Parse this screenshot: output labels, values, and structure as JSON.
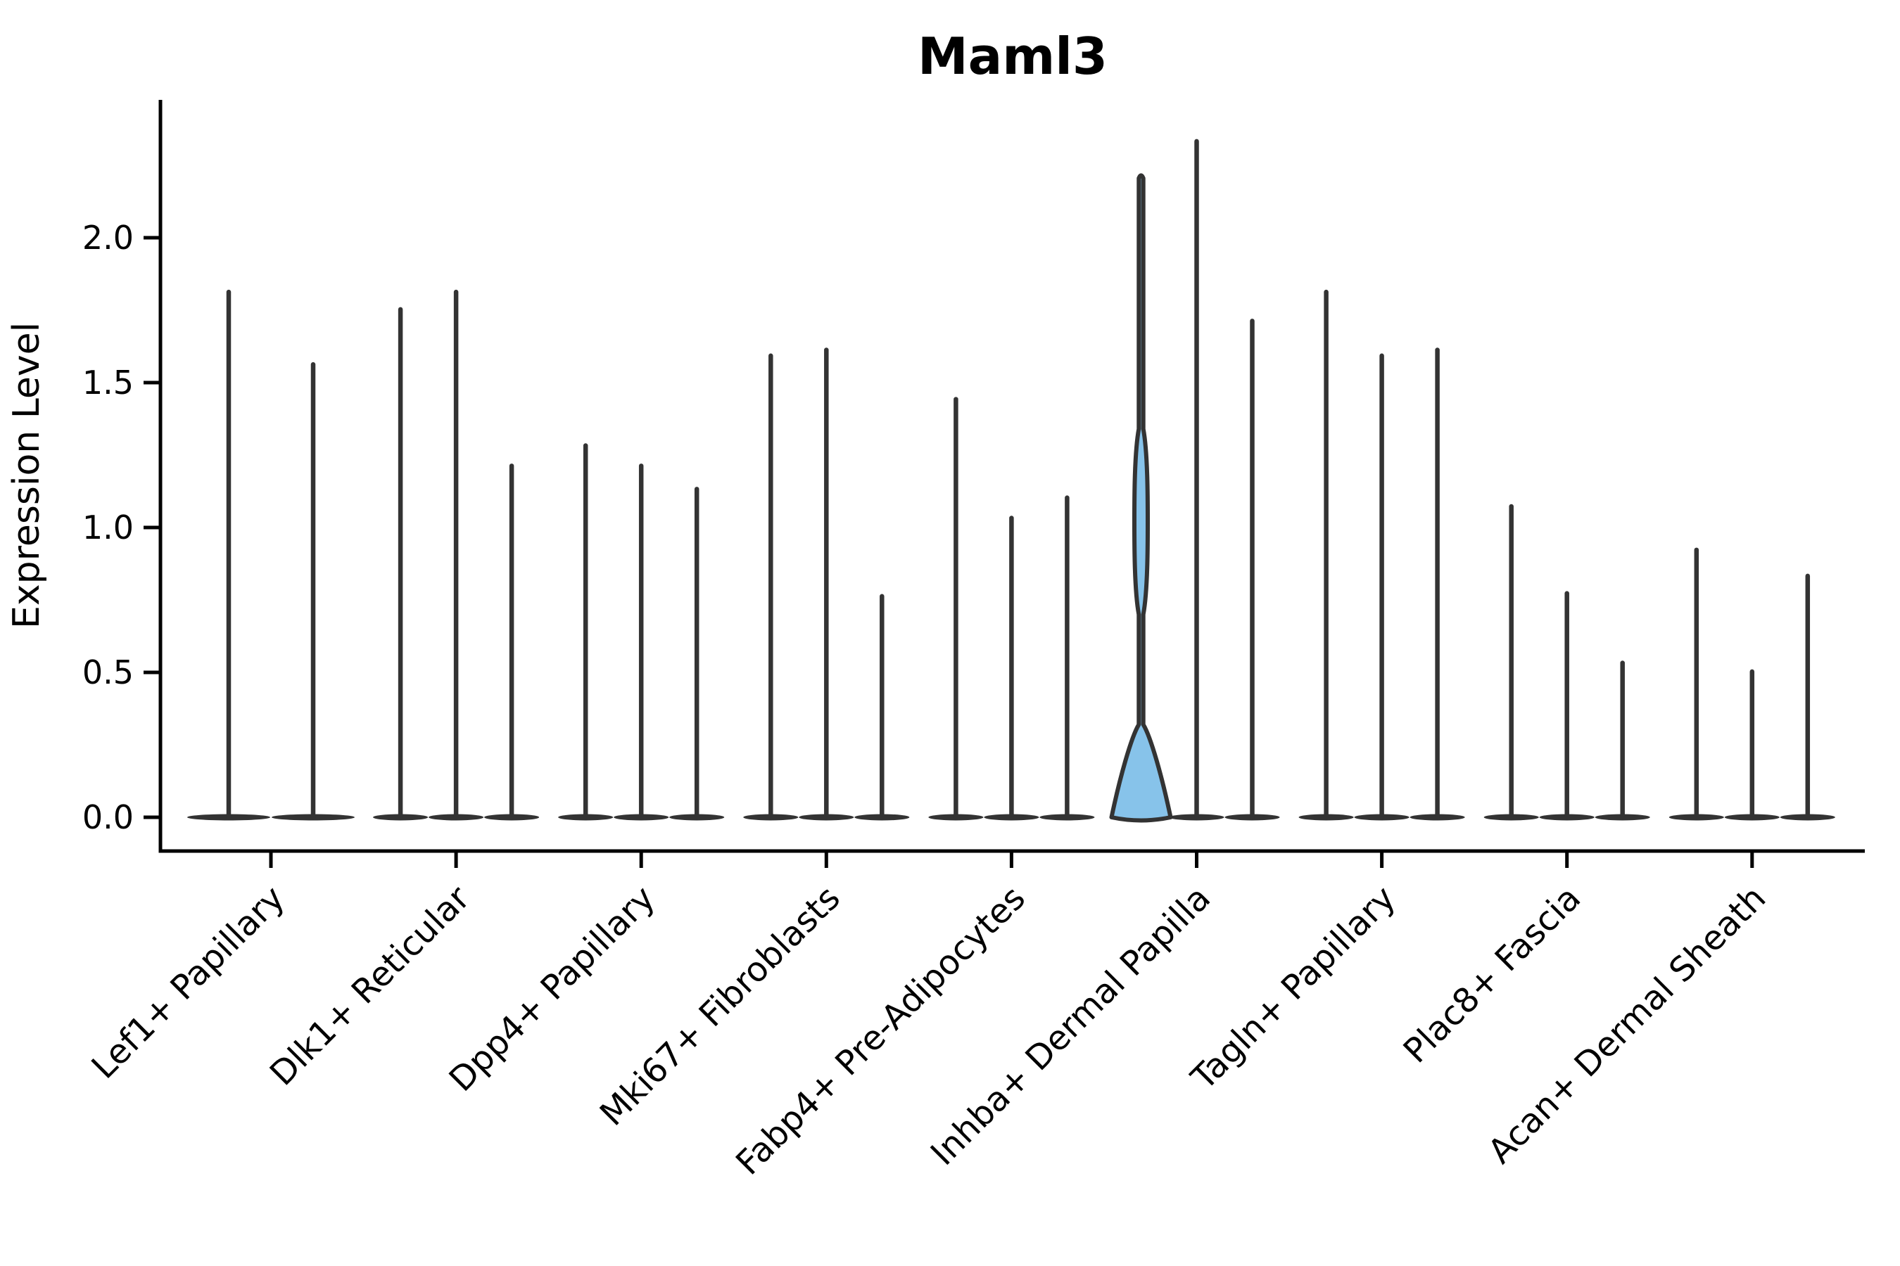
{
  "chart_data": {
    "type": "violin",
    "title": "Maml3",
    "ylabel": "Expression Level",
    "xlabel": "",
    "ylim": [
      -0.07,
      2.48
    ],
    "grid": false,
    "yticks": [
      "0.0",
      "0.5",
      "1.0",
      "1.5",
      "2.0"
    ],
    "ytick_values": [
      0.0,
      0.5,
      1.0,
      1.5,
      2.0
    ],
    "categories": [
      "Lef1+ Papillary",
      "Dlk1+ Reticular",
      "Dpp4+ Papillary",
      "Mki67+ Fibroblasts",
      "Fabp4+ Pre-Adipocytes",
      "Inhba+ Dermal Papilla",
      "Tagln+ Papillary",
      "Plac8+ Fascia",
      "Acan+ Dermal Sheath"
    ],
    "groups": [
      {
        "category": "Lef1+ Papillary",
        "violins": [
          {
            "max": 1.82
          },
          {
            "max": 1.57
          }
        ]
      },
      {
        "category": "Dlk1+ Reticular",
        "violins": [
          {
            "max": 1.76
          },
          {
            "max": 1.82
          },
          {
            "max": 1.22
          }
        ]
      },
      {
        "category": "Dpp4+ Papillary",
        "violins": [
          {
            "max": 1.29
          },
          {
            "max": 1.22
          },
          {
            "max": 1.14
          }
        ]
      },
      {
        "category": "Mki67+ Fibroblasts",
        "violins": [
          {
            "max": 1.6
          },
          {
            "max": 1.62
          },
          {
            "max": 0.77
          }
        ]
      },
      {
        "category": "Fabp4+ Pre-Adipocytes",
        "violins": [
          {
            "max": 1.45
          },
          {
            "max": 1.04
          },
          {
            "max": 1.11
          }
        ]
      },
      {
        "category": "Inhba+ Dermal Papilla",
        "violins": [
          {
            "max": 2.22,
            "highlight": true,
            "bulge": {
              "from": 0.7,
              "peak": 1.02,
              "to": 1.34
            }
          },
          {
            "max": 2.34
          },
          {
            "max": 1.72
          }
        ]
      },
      {
        "category": "Tagln+ Papillary",
        "violins": [
          {
            "max": 1.82
          },
          {
            "max": 1.6
          },
          {
            "max": 1.62
          }
        ]
      },
      {
        "category": "Plac8+ Fascia",
        "violins": [
          {
            "max": 1.08
          },
          {
            "max": 0.78
          },
          {
            "max": 0.54
          }
        ]
      },
      {
        "category": "Acan+ Dermal Sheath",
        "violins": [
          {
            "max": 0.93
          },
          {
            "max": 0.51
          },
          {
            "max": 0.84
          }
        ]
      }
    ],
    "colors": {
      "violin_outline": "#333333",
      "highlight_fill": "#87C3EA",
      "axis": "#000000",
      "background": "#FFFFFF"
    },
    "legend": "none"
  }
}
